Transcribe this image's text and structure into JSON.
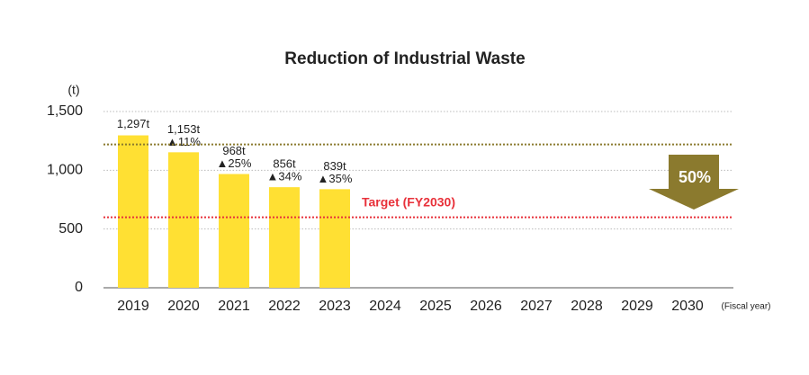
{
  "chart_data": {
    "type": "bar",
    "title": "Reduction of Industrial Waste",
    "y_axis_label": "(t)",
    "x_axis_label": "(Fiscal year)",
    "categories": [
      "2019",
      "2020",
      "2021",
      "2022",
      "2023",
      "2024",
      "2025",
      "2026",
      "2027",
      "2028",
      "2029",
      "2030"
    ],
    "values": [
      1297,
      1153,
      968,
      856,
      839,
      null,
      null,
      null,
      null,
      null,
      null,
      null
    ],
    "value_labels": [
      "1,297t",
      "1,153t",
      "968t",
      "856t",
      "839t",
      null,
      null,
      null,
      null,
      null,
      null,
      null
    ],
    "change_labels": [
      null,
      "▲11%",
      "▲25%",
      "▲34%",
      "▲35%",
      null,
      null,
      null,
      null,
      null,
      null,
      null
    ],
    "color": "#ffe033",
    "ylim": [
      0,
      1500
    ],
    "yticks": [
      0,
      500,
      {
        "value": 1000,
        "label": "1,000"
      },
      {
        "value": 1500,
        "label": "1,500"
      }
    ],
    "grid": true,
    "reference_lines": [
      {
        "value": 1220,
        "color": "#8b7a2e"
      },
      {
        "value": 600,
        "color": "#e8313a",
        "label": "Target (FY2030)"
      }
    ],
    "annotation": {
      "label": "50%",
      "color": "#8b7a2e"
    }
  }
}
